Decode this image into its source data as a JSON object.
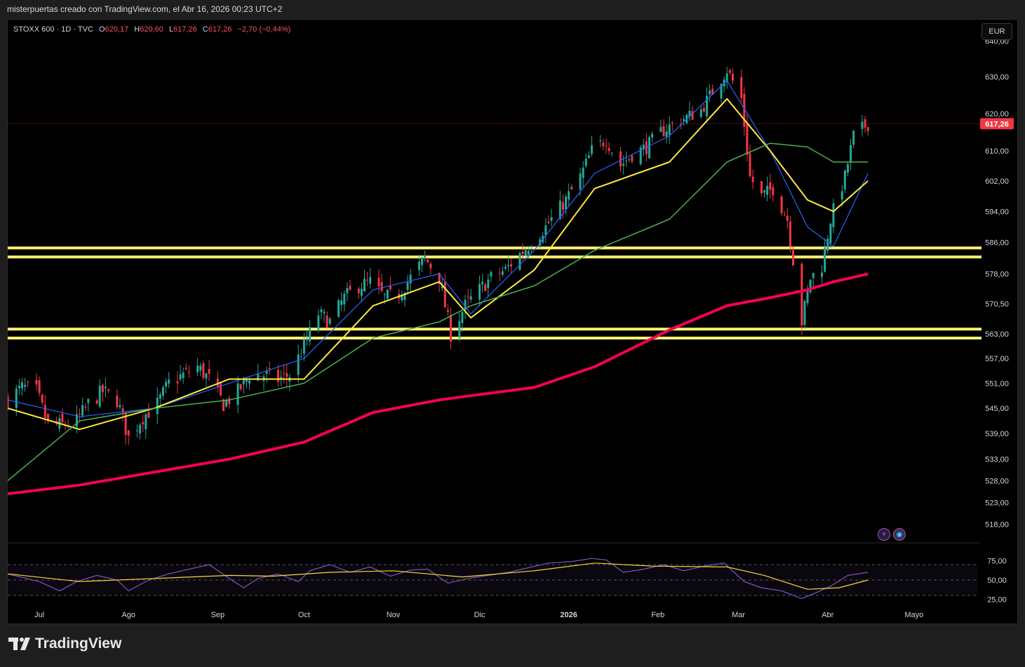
{
  "header": {
    "text": "misterpuertas creado con TradingView.com, el Abr 16, 2026 00:23 UTC+2"
  },
  "legend": {
    "symbol": "STOXX 600 · 1D · TVC",
    "o_label": "O",
    "o": "620,17",
    "h_label": "H",
    "h": "620,60",
    "l_label": "L",
    "l": "617,26",
    "c_label": "C",
    "c": "617,26",
    "change": "−2,70 (−0,44%)"
  },
  "currency": "EUR",
  "last_price_label": "617,26",
  "brand": "TradingView",
  "colors": {
    "up": "#26a69a",
    "down": "#f23645",
    "ema_fast": "#2962ff",
    "ema_mid": "#ffeb3b",
    "ema_slow": "#4caf50",
    "ma200": "#f50057",
    "support": "#fff176",
    "rsi": "#7e57c2"
  },
  "chart_data": [
    {
      "type": "candlestick",
      "title": "",
      "symbol": "STOXX 600",
      "interval": "1D",
      "currency": "EUR",
      "last_price": 617.26,
      "x_tick_labels": [
        "Jul",
        "Ago",
        "Sep",
        "Oct",
        "Nov",
        "Dic",
        "2026",
        "Feb",
        "Mar",
        "Abr",
        "Mayo"
      ],
      "y_tick_labels": [
        "640,00",
        "630,00",
        "620,00",
        "610,00",
        "602,00",
        "594,00",
        "586,00",
        "578,00",
        "570,50",
        "563,00",
        "557,00",
        "551,00",
        "545,00",
        "539,00",
        "533,00",
        "528,00",
        "523,00",
        "518,00"
      ],
      "y_ticks": [
        640,
        630,
        620,
        610,
        602,
        594,
        586,
        578,
        570.5,
        563,
        557,
        551,
        545,
        539,
        533,
        528,
        523,
        518
      ],
      "y_scale": "log",
      "ylim": [
        514,
        646
      ],
      "horizontal_levels": [
        584.6,
        582.3,
        564.2,
        562.0
      ],
      "close_path": [
        {
          "date": "2025-06-20",
          "close": 547
        },
        {
          "date": "2025-06-25",
          "close": 550
        },
        {
          "date": "2025-06-30",
          "close": 549
        },
        {
          "date": "2025-07-04",
          "close": 541
        },
        {
          "date": "2025-07-09",
          "close": 541
        },
        {
          "date": "2025-07-14",
          "close": 542
        },
        {
          "date": "2025-07-18",
          "close": 546
        },
        {
          "date": "2025-07-23",
          "close": 549
        },
        {
          "date": "2025-07-28",
          "close": 547
        },
        {
          "date": "2025-08-01",
          "close": 538
        },
        {
          "date": "2025-08-06",
          "close": 543
        },
        {
          "date": "2025-08-11",
          "close": 546
        },
        {
          "date": "2025-08-15",
          "close": 551
        },
        {
          "date": "2025-08-20",
          "close": 553
        },
        {
          "date": "2025-08-25",
          "close": 555
        },
        {
          "date": "2025-08-29",
          "close": 552
        },
        {
          "date": "2025-09-03",
          "close": 546
        },
        {
          "date": "2025-09-08",
          "close": 549
        },
        {
          "date": "2025-09-12",
          "close": 553
        },
        {
          "date": "2025-09-17",
          "close": 553
        },
        {
          "date": "2025-09-22",
          "close": 552
        },
        {
          "date": "2025-09-26",
          "close": 553
        },
        {
          "date": "2025-10-01",
          "close": 560
        },
        {
          "date": "2025-10-06",
          "close": 568
        },
        {
          "date": "2025-10-10",
          "close": 566
        },
        {
          "date": "2025-10-15",
          "close": 572
        },
        {
          "date": "2025-10-20",
          "close": 575
        },
        {
          "date": "2025-10-24",
          "close": 576
        },
        {
          "date": "2025-10-29",
          "close": 572
        },
        {
          "date": "2025-11-03",
          "close": 573
        },
        {
          "date": "2025-11-07",
          "close": 577
        },
        {
          "date": "2025-11-12",
          "close": 582
        },
        {
          "date": "2025-11-17",
          "close": 577
        },
        {
          "date": "2025-11-21",
          "close": 563
        },
        {
          "date": "2025-11-26",
          "close": 570
        },
        {
          "date": "2025-12-01",
          "close": 574
        },
        {
          "date": "2025-12-05",
          "close": 577
        },
        {
          "date": "2025-12-10",
          "close": 579
        },
        {
          "date": "2025-12-15",
          "close": 583
        },
        {
          "date": "2025-12-19",
          "close": 586
        },
        {
          "date": "2025-12-24",
          "close": 590
        },
        {
          "date": "2025-12-31",
          "close": 597
        },
        {
          "date": "2026-01-05",
          "close": 603
        },
        {
          "date": "2026-01-09",
          "close": 610
        },
        {
          "date": "2026-01-14",
          "close": 613
        },
        {
          "date": "2026-01-19",
          "close": 606
        },
        {
          "date": "2026-01-23",
          "close": 609
        },
        {
          "date": "2026-01-28",
          "close": 611
        },
        {
          "date": "2026-02-02",
          "close": 615
        },
        {
          "date": "2026-02-06",
          "close": 617
        },
        {
          "date": "2026-02-11",
          "close": 619
        },
        {
          "date": "2026-02-16",
          "close": 621
        },
        {
          "date": "2026-02-20",
          "close": 626
        },
        {
          "date": "2026-02-25",
          "close": 632
        },
        {
          "date": "2026-03-02",
          "close": 624
        },
        {
          "date": "2026-03-05",
          "close": 603
        },
        {
          "date": "2026-03-09",
          "close": 598
        },
        {
          "date": "2026-03-13",
          "close": 600
        },
        {
          "date": "2026-03-18",
          "close": 592
        },
        {
          "date": "2026-03-23",
          "close": 566
        },
        {
          "date": "2026-03-26",
          "close": 577
        },
        {
          "date": "2026-03-30",
          "close": 580
        },
        {
          "date": "2026-04-02",
          "close": 592
        },
        {
          "date": "2026-04-07",
          "close": 603
        },
        {
          "date": "2026-04-10",
          "close": 614
        },
        {
          "date": "2026-04-15",
          "close": 617.26
        }
      ],
      "series": [
        {
          "name": "",
          "style": "ema_fast",
          "points": [
            [
              "2025-06-20",
              547
            ],
            [
              "2025-07-15",
              543
            ],
            [
              "2025-08-10",
              545
            ],
            [
              "2025-09-05",
              551
            ],
            [
              "2025-10-01",
              557
            ],
            [
              "2025-10-25",
              574
            ],
            [
              "2025-11-17",
              578
            ],
            [
              "2025-11-28",
              568
            ],
            [
              "2025-12-20",
              584
            ],
            [
              "2026-01-10",
              604
            ],
            [
              "2026-02-05",
              614
            ],
            [
              "2026-02-25",
              629
            ],
            [
              "2026-03-12",
              610
            ],
            [
              "2026-03-25",
              590
            ],
            [
              "2026-04-03",
              585
            ],
            [
              "2026-04-15",
              604
            ]
          ]
        },
        {
          "name": "",
          "style": "ema_mid",
          "points": [
            [
              "2025-06-20",
              545
            ],
            [
              "2025-07-15",
              540
            ],
            [
              "2025-08-10",
              545
            ],
            [
              "2025-09-05",
              552
            ],
            [
              "2025-10-01",
              552
            ],
            [
              "2025-10-25",
              570
            ],
            [
              "2025-11-17",
              576
            ],
            [
              "2025-11-28",
              567
            ],
            [
              "2025-12-20",
              579
            ],
            [
              "2026-01-10",
              600
            ],
            [
              "2026-02-05",
              607
            ],
            [
              "2026-02-25",
              624
            ],
            [
              "2026-03-12",
              610
            ],
            [
              "2026-03-25",
              597
            ],
            [
              "2026-04-03",
              594
            ],
            [
              "2026-04-15",
              602
            ]
          ]
        },
        {
          "name": "",
          "style": "ema_slow",
          "points": [
            [
              "2025-06-20",
              528
            ],
            [
              "2025-07-15",
              542
            ],
            [
              "2025-08-10",
              545
            ],
            [
              "2025-09-05",
              547
            ],
            [
              "2025-10-01",
              551
            ],
            [
              "2025-10-25",
              562
            ],
            [
              "2025-11-17",
              566
            ],
            [
              "2025-11-28",
              570
            ],
            [
              "2025-12-20",
              575
            ],
            [
              "2026-01-10",
              584
            ],
            [
              "2026-02-05",
              592
            ],
            [
              "2026-02-25",
              607
            ],
            [
              "2026-03-12",
              612
            ],
            [
              "2026-03-25",
              611
            ],
            [
              "2026-04-03",
              607
            ],
            [
              "2026-04-15",
              607
            ]
          ]
        },
        {
          "name": "",
          "style": "ma200",
          "points": [
            [
              "2025-06-20",
              525
            ],
            [
              "2025-07-15",
              527
            ],
            [
              "2025-08-10",
              530
            ],
            [
              "2025-09-05",
              533
            ],
            [
              "2025-10-01",
              537
            ],
            [
              "2025-10-25",
              544
            ],
            [
              "2025-11-17",
              547
            ],
            [
              "2025-11-28",
              548
            ],
            [
              "2025-12-20",
              550
            ],
            [
              "2026-01-10",
              555
            ],
            [
              "2026-02-05",
              564
            ],
            [
              "2026-02-25",
              570
            ],
            [
              "2026-03-12",
              572
            ],
            [
              "2026-03-25",
              574
            ],
            [
              "2026-04-03",
              576
            ],
            [
              "2026-04-15",
              578
            ]
          ]
        }
      ]
    },
    {
      "type": "line",
      "title": "",
      "y_tick_labels": [
        "75,00",
        "50,00",
        "25,00"
      ],
      "y_ticks": [
        75,
        50,
        25
      ],
      "ylim": [
        20,
        80
      ],
      "band": [
        30,
        70
      ],
      "series": [
        {
          "name": "",
          "style": "rsi",
          "points": [
            [
              "2025-06-20",
              58
            ],
            [
              "2025-07-01",
              48
            ],
            [
              "2025-07-08",
              36
            ],
            [
              "2025-07-14",
              48
            ],
            [
              "2025-07-21",
              56
            ],
            [
              "2025-07-28",
              50
            ],
            [
              "2025-08-01",
              36
            ],
            [
              "2025-08-08",
              50
            ],
            [
              "2025-08-15",
              58
            ],
            [
              "2025-08-22",
              64
            ],
            [
              "2025-08-29",
              70
            ],
            [
              "2025-09-05",
              52
            ],
            [
              "2025-09-10",
              40
            ],
            [
              "2025-09-15",
              52
            ],
            [
              "2025-09-22",
              58
            ],
            [
              "2025-09-29",
              48
            ],
            [
              "2025-10-03",
              62
            ],
            [
              "2025-10-10",
              70
            ],
            [
              "2025-10-17",
              60
            ],
            [
              "2025-10-24",
              67
            ],
            [
              "2025-10-31",
              55
            ],
            [
              "2025-11-07",
              63
            ],
            [
              "2025-11-13",
              64
            ],
            [
              "2025-11-20",
              46
            ],
            [
              "2025-11-27",
              52
            ],
            [
              "2025-12-04",
              56
            ],
            [
              "2025-12-11",
              60
            ],
            [
              "2025-12-18",
              66
            ],
            [
              "2025-12-25",
              72
            ],
            [
              "2026-01-02",
              74
            ],
            [
              "2026-01-09",
              78
            ],
            [
              "2026-01-14",
              76
            ],
            [
              "2026-01-20",
              60
            ],
            [
              "2026-01-27",
              64
            ],
            [
              "2026-02-03",
              70
            ],
            [
              "2026-02-10",
              62
            ],
            [
              "2026-02-17",
              68
            ],
            [
              "2026-02-24",
              72
            ],
            [
              "2026-03-03",
              48
            ],
            [
              "2026-03-09",
              40
            ],
            [
              "2026-03-16",
              36
            ],
            [
              "2026-03-23",
              26
            ],
            [
              "2026-03-27",
              32
            ],
            [
              "2026-04-02",
              42
            ],
            [
              "2026-04-08",
              56
            ],
            [
              "2026-04-15",
              60
            ]
          ]
        },
        {
          "name": "",
          "style": "rsi_ma",
          "points": [
            [
              "2025-06-20",
              58
            ],
            [
              "2025-07-15",
              48
            ],
            [
              "2025-08-10",
              52
            ],
            [
              "2025-09-05",
              56
            ],
            [
              "2025-09-20",
              55
            ],
            [
              "2025-10-10",
              60
            ],
            [
              "2025-11-01",
              62
            ],
            [
              "2025-11-25",
              54
            ],
            [
              "2025-12-20",
              62
            ],
            [
              "2026-01-10",
              72
            ],
            [
              "2026-01-30",
              68
            ],
            [
              "2026-02-25",
              67
            ],
            [
              "2026-03-10",
              56
            ],
            [
              "2026-03-25",
              38
            ],
            [
              "2026-04-05",
              40
            ],
            [
              "2026-04-15",
              50
            ]
          ]
        }
      ]
    }
  ]
}
